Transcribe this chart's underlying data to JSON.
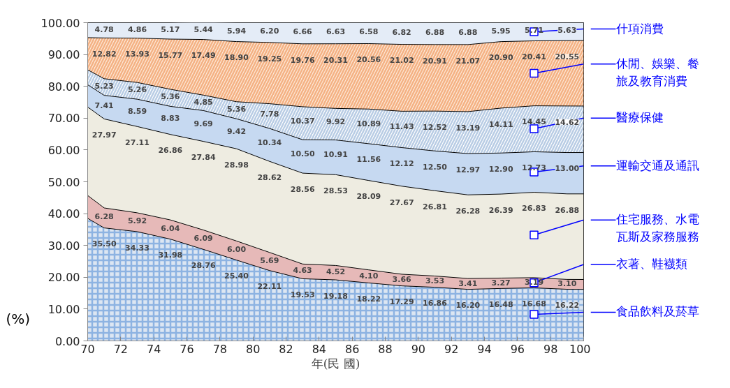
{
  "chart_data": {
    "type": "area",
    "stacked": true,
    "xlabel": "年(民 國)",
    "ylabel": "(%)",
    "x": [
      70,
      71,
      73,
      75,
      77,
      79,
      81,
      83,
      85,
      87,
      89,
      91,
      93,
      95,
      97,
      99,
      100
    ],
    "xlim": [
      70,
      100
    ],
    "xticks": [
      70,
      72,
      74,
      76,
      78,
      80,
      82,
      84,
      86,
      88,
      90,
      92,
      94,
      96,
      98,
      100
    ],
    "ylim": [
      0,
      100
    ],
    "yticks": [
      {
        "value": 0,
        "label": "0.00"
      },
      {
        "value": 10,
        "label": "10.00"
      },
      {
        "value": 20,
        "label": "20.00"
      },
      {
        "value": 30,
        "label": "30.00"
      },
      {
        "value": 40,
        "label": "40.00"
      },
      {
        "value": 50,
        "label": "50.00"
      },
      {
        "value": 60,
        "label": "60.00"
      },
      {
        "value": 70,
        "label": "70.00"
      },
      {
        "value": 80,
        "label": "80.00"
      },
      {
        "value": 90,
        "label": "90.00"
      },
      {
        "value": 100,
        "label": "100.00"
      }
    ],
    "grid": false,
    "series": [
      {
        "name": "食品飲料及菸草",
        "color": "#dce6f2",
        "values": [
          38.5,
          35.5,
          34.33,
          31.98,
          28.76,
          25.4,
          22.11,
          19.53,
          19.18,
          18.22,
          17.29,
          16.86,
          16.2,
          16.48,
          16.68,
          16.22,
          16.2
        ],
        "value_labels": [
          null,
          "35.50",
          "34.33",
          "31.98",
          "28.76",
          "25.40",
          "22.11",
          "19.53",
          "19.18",
          "18.22",
          "17.29",
          "16.86",
          "16.20",
          "16.48",
          "16.68",
          "16.22",
          null
        ]
      },
      {
        "name": "衣著、鞋襪類",
        "color": "#e6b9b8",
        "values": [
          7.2,
          6.28,
          5.92,
          6.04,
          6.09,
          6.0,
          5.69,
          4.63,
          4.52,
          4.1,
          3.66,
          3.53,
          3.41,
          3.27,
          3.19,
          3.1,
          3.1
        ],
        "value_labels": [
          null,
          "6.28",
          "5.92",
          "6.04",
          "6.09",
          "6.00",
          "5.69",
          "4.63",
          "4.52",
          "4.10",
          "3.66",
          "3.53",
          "3.41",
          "3.27",
          "3.19",
          "3.10",
          null
        ]
      },
      {
        "name": "住宅服務、水電瓦斯及家務服務",
        "color": "#eeece1",
        "values": [
          27.8,
          27.97,
          27.11,
          26.86,
          27.84,
          28.98,
          28.62,
          28.56,
          28.53,
          28.09,
          27.67,
          26.81,
          26.28,
          26.39,
          26.83,
          26.88,
          26.9
        ],
        "value_labels": [
          null,
          "27.97",
          "27.11",
          "26.86",
          "27.84",
          "28.98",
          "28.62",
          "28.56",
          "28.53",
          "28.09",
          "27.67",
          "26.81",
          "26.28",
          "26.39",
          "26.83",
          "26.88",
          null
        ]
      },
      {
        "name": "運輸交通及通訊",
        "color": "#c6d9f1",
        "values": [
          7.0,
          7.41,
          8.59,
          8.83,
          9.69,
          9.42,
          10.34,
          10.5,
          10.91,
          11.56,
          12.12,
          12.5,
          12.97,
          12.9,
          12.73,
          13.0,
          13.0
        ],
        "value_labels": [
          null,
          "7.41",
          "8.59",
          "8.83",
          "9.69",
          "9.42",
          "10.34",
          "10.50",
          "10.91",
          "11.56",
          "12.12",
          "12.50",
          "12.97",
          "12.90",
          "12.73",
          "13.00",
          null
        ]
      },
      {
        "name": "醫療保健",
        "color": "#ffffff",
        "values": [
          4.7,
          5.23,
          5.26,
          5.36,
          4.85,
          5.36,
          7.78,
          10.37,
          9.92,
          10.89,
          11.43,
          12.52,
          13.19,
          14.11,
          14.45,
          14.62,
          14.6
        ],
        "value_labels": [
          null,
          "5.23",
          "5.26",
          "5.36",
          "4.85",
          "5.36",
          "7.78",
          "10.37",
          "9.92",
          "10.89",
          "11.43",
          "12.52",
          "13.19",
          "14.11",
          "14.45",
          "14.62",
          null
        ]
      },
      {
        "name": "休閒、娛樂、餐旅及教育消費",
        "color": "#fdeada",
        "values": [
          10.1,
          12.82,
          13.93,
          15.77,
          17.49,
          18.9,
          19.25,
          19.76,
          20.31,
          20.56,
          21.02,
          20.91,
          21.07,
          20.9,
          20.41,
          20.55,
          20.6
        ],
        "value_labels": [
          null,
          "12.82",
          "13.93",
          "15.77",
          "17.49",
          "18.90",
          "19.25",
          "19.76",
          "20.31",
          "20.56",
          "21.02",
          "20.91",
          "21.07",
          "20.90",
          "20.41",
          "20.55",
          null
        ]
      },
      {
        "name": "什項消費",
        "color": "#e4ecf7",
        "values": [
          4.7,
          4.78,
          4.86,
          5.17,
          5.44,
          5.94,
          6.2,
          6.66,
          6.63,
          6.58,
          6.82,
          6.88,
          6.88,
          5.95,
          5.71,
          5.63,
          5.6
        ],
        "value_labels": [
          null,
          "4.78",
          "4.86",
          "5.17",
          "5.44",
          "5.94",
          "6.20",
          "6.66",
          "6.63",
          "6.58",
          "6.82",
          "6.88",
          "6.88",
          "5.95",
          "5.71",
          "5.63",
          null
        ]
      }
    ]
  }
}
